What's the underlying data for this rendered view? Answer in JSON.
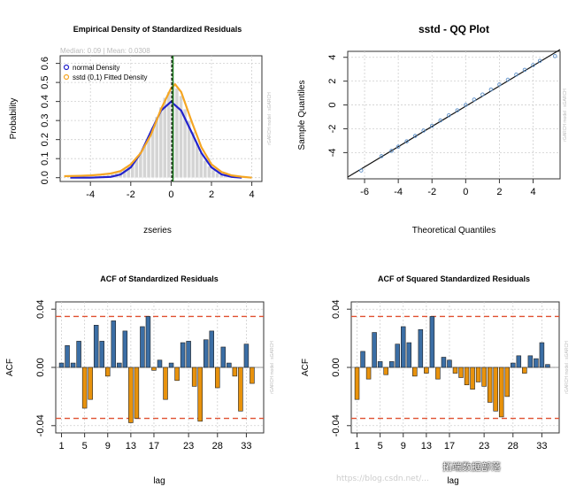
{
  "chart_data": [
    {
      "id": "density",
      "type": "histogram+line",
      "title": "Empirical Density of Standardized Residuals",
      "subtitle": "Median: 0.09 | Mean: 0.0308",
      "xlabel": "zseries",
      "ylabel": "Probability",
      "xlim": [
        -5.5,
        4.5
      ],
      "ylim": [
        -0.02,
        0.64
      ],
      "xticks": [
        -4,
        -2,
        0,
        2,
        4
      ],
      "yticks": [
        0.0,
        0.1,
        0.2,
        0.3,
        0.4,
        0.5,
        0.6
      ],
      "legend": {
        "position": "top-left",
        "entries": [
          "normal Density",
          "sstd (0,1) Fitted Density"
        ]
      },
      "side_note": "rGARCH model : sGARCH",
      "hist_bins": [
        -5.0,
        -4.8,
        -4.6,
        -4.4,
        -4.2,
        -4.0,
        -3.8,
        -3.6,
        -3.4,
        -3.2,
        -3.0,
        -2.8,
        -2.6,
        -2.4,
        -2.2,
        -2.0,
        -1.8,
        -1.6,
        -1.4,
        -1.2,
        -1.0,
        -0.8,
        -0.6,
        -0.4,
        -0.2,
        0.0,
        0.2,
        0.4,
        0.6,
        0.8,
        1.0,
        1.2,
        1.4,
        1.6,
        1.8,
        2.0,
        2.2,
        2.4,
        2.6,
        2.8,
        3.0,
        3.2
      ],
      "hist_width": 0.2,
      "hist_values": [
        0.003,
        0.003,
        0.003,
        0.004,
        0.005,
        0.006,
        0.008,
        0.01,
        0.012,
        0.015,
        0.02,
        0.026,
        0.033,
        0.045,
        0.06,
        0.08,
        0.105,
        0.135,
        0.17,
        0.215,
        0.265,
        0.32,
        0.37,
        0.42,
        0.45,
        0.5,
        0.47,
        0.43,
        0.36,
        0.3,
        0.24,
        0.18,
        0.13,
        0.09,
        0.06,
        0.04,
        0.025,
        0.015,
        0.009,
        0.005,
        0.003,
        0.002
      ],
      "median_line": 0.09,
      "mean_line": 0.0308,
      "series": [
        {
          "name": "normal Density",
          "color": "#2222cc",
          "x": [
            -5.0,
            -4.0,
            -3.0,
            -2.5,
            -2.0,
            -1.5,
            -1.0,
            -0.5,
            0.0,
            0.5,
            1.0,
            1.5,
            2.0,
            2.5,
            3.0,
            3.5
          ],
          "y": [
            0.0,
            0.0,
            0.004,
            0.017,
            0.054,
            0.13,
            0.242,
            0.352,
            0.399,
            0.352,
            0.242,
            0.13,
            0.054,
            0.017,
            0.004,
            0.0
          ]
        },
        {
          "name": "sstd (0,1) Fitted Density",
          "color": "#f5a623",
          "x": [
            -5.3,
            -4.5,
            -4.0,
            -3.5,
            -3.0,
            -2.5,
            -2.0,
            -1.5,
            -1.0,
            -0.5,
            0.0,
            0.2,
            0.5,
            1.0,
            1.5,
            2.0,
            2.5,
            3.0,
            3.5,
            4.0
          ],
          "y": [
            0.008,
            0.01,
            0.012,
            0.016,
            0.022,
            0.035,
            0.07,
            0.13,
            0.225,
            0.36,
            0.47,
            0.49,
            0.45,
            0.3,
            0.16,
            0.07,
            0.03,
            0.012,
            0.005,
            0.0
          ]
        }
      ]
    },
    {
      "id": "qq",
      "type": "scatter",
      "title": "sstd - QQ Plot",
      "xlabel": "Theoretical Quantiles",
      "ylabel": "Sample Quantiles",
      "xlim": [
        -7,
        5.6
      ],
      "ylim": [
        -6.2,
        4.5
      ],
      "xticks": [
        -6,
        -4,
        -2,
        0,
        2,
        4
      ],
      "yticks": [
        -4,
        -2,
        0,
        2,
        4
      ],
      "side_note": "rGARCH model : sGARCH",
      "reference_line": {
        "x": [
          -7,
          5.6
        ],
        "y": [
          -6.05,
          4.65
        ]
      },
      "points": {
        "x": [
          -6.2,
          -5.0,
          -4.4,
          -4.0,
          -3.5,
          -3.0,
          -2.5,
          -2.0,
          -1.5,
          -1.0,
          -0.5,
          0.0,
          0.5,
          1.0,
          1.5,
          2.0,
          2.5,
          3.0,
          3.5,
          4.0,
          4.4,
          5.3
        ],
        "y": [
          -5.5,
          -4.3,
          -3.85,
          -3.5,
          -3.05,
          -2.6,
          -2.15,
          -1.75,
          -1.3,
          -0.87,
          -0.45,
          0.0,
          0.45,
          0.88,
          1.3,
          1.72,
          2.12,
          2.55,
          2.95,
          3.35,
          3.7,
          4.1
        ]
      }
    },
    {
      "id": "acf1",
      "type": "bar",
      "title": "ACF of Standardized Residuals",
      "xlabel": "lag",
      "ylabel": "ACF",
      "xlim": [
        0,
        36
      ],
      "ylim": [
        -0.045,
        0.045
      ],
      "xticks": [
        1,
        5,
        9,
        13,
        17,
        23,
        28,
        33
      ],
      "yticks": [
        -0.04,
        0.0,
        0.04
      ],
      "ci": 0.035,
      "side_note": "rGARCH model : sGARCH",
      "lags": [
        1,
        2,
        3,
        4,
        5,
        6,
        7,
        8,
        9,
        10,
        11,
        12,
        13,
        14,
        15,
        16,
        17,
        18,
        19,
        20,
        21,
        22,
        23,
        24,
        25,
        26,
        27,
        28,
        29,
        30,
        31,
        32,
        33,
        34
      ],
      "values": [
        0.003,
        0.015,
        0.003,
        0.018,
        -0.028,
        -0.022,
        0.029,
        0.018,
        -0.006,
        0.032,
        0.003,
        0.025,
        -0.038,
        -0.035,
        0.028,
        0.035,
        -0.002,
        0.005,
        -0.022,
        0.003,
        -0.009,
        0.017,
        0.018,
        -0.013,
        -0.037,
        0.019,
        0.025,
        -0.014,
        0.014,
        0.003,
        -0.006,
        -0.03,
        0.016,
        -0.011
      ],
      "colors": {
        "positive": "#3b6ea5",
        "negative": "#e8920c",
        "ci": "#e05030"
      }
    },
    {
      "id": "acf2",
      "type": "bar",
      "title": "ACF of Squared Standardized Residuals",
      "xlabel": "lag",
      "ylabel": "ACF",
      "xlim": [
        0,
        36
      ],
      "ylim": [
        -0.045,
        0.045
      ],
      "xticks": [
        1,
        5,
        9,
        13,
        17,
        23,
        28,
        33
      ],
      "yticks": [
        -0.04,
        0.0,
        0.04
      ],
      "ci": 0.035,
      "side_note": "rGARCH model : sGARCH",
      "lags": [
        1,
        2,
        3,
        4,
        5,
        6,
        7,
        8,
        9,
        10,
        11,
        12,
        13,
        14,
        15,
        16,
        17,
        18,
        19,
        20,
        21,
        22,
        23,
        24,
        25,
        26,
        27,
        28,
        29,
        30,
        31,
        32,
        33,
        34
      ],
      "values": [
        -0.022,
        0.011,
        -0.008,
        0.024,
        0.004,
        -0.005,
        0.004,
        0.016,
        0.028,
        0.017,
        -0.006,
        0.026,
        -0.004,
        0.035,
        -0.008,
        0.007,
        0.005,
        -0.004,
        -0.007,
        -0.012,
        -0.015,
        -0.01,
        -0.013,
        -0.024,
        -0.03,
        -0.034,
        -0.02,
        0.003,
        0.008,
        -0.004,
        0.008,
        0.006,
        0.017,
        0.002
      ],
      "colors": {
        "positive": "#3b6ea5",
        "negative": "#e8920c",
        "ci": "#e05030"
      }
    }
  ],
  "watermark": {
    "line1": "拓端数据部落",
    "line2": "https://blog.csdn.net/..."
  }
}
